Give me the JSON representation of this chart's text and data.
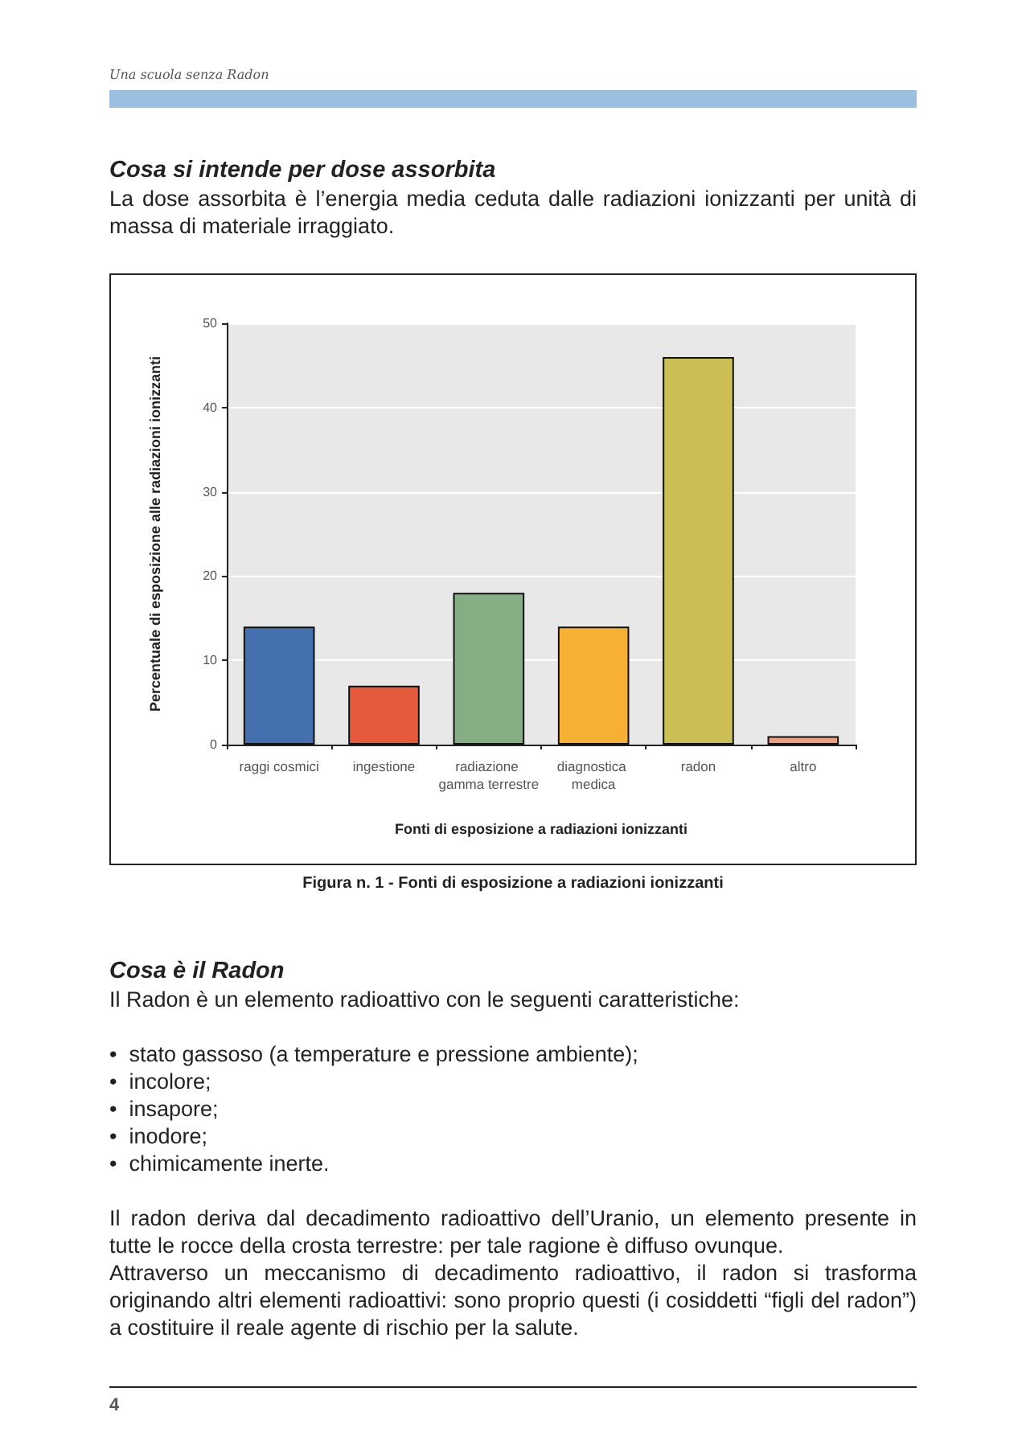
{
  "chart_data": {
    "type": "bar",
    "title": "Figura n. 1 - Fonti di esposizione a radiazioni ionizzanti",
    "xlabel": "Fonti di esposizione a radiazioni ionizzanti",
    "ylabel": "Percentuale di esposizione alle radiazioni ionizzanti",
    "categories": [
      "raggi cosmici",
      "ingestione",
      "radiazione gamma terrestre",
      "diagnostica medica",
      "radon",
      "altro"
    ],
    "values": [
      14,
      7,
      18,
      14,
      46,
      1
    ],
    "colors": [
      "#4470b0",
      "#e55a3a",
      "#86ae84",
      "#f6b034",
      "#cbbe55",
      "#eda07f"
    ],
    "ylim": [
      0,
      50
    ],
    "yticks": [
      0,
      10,
      20,
      30,
      40,
      50
    ],
    "grid": "y",
    "annotations": [
      "Una scuola senza Radon",
      "Cosa si intende per dose assorbita",
      "La dose assorbita è l’energia media ceduta dalle radiazioni ionizzanti per unità di massa di materiale irraggiato.",
      "Cosa è il Radon",
      "Il Radon è un elemento radioattivo con le seguenti caratteristiche:",
      "•  stato gassoso (a temperature e pressione ambiente);",
      "•  incolore;",
      "•  insapore;",
      "•  inodore;",
      "•  chimicamente inerte.",
      "Il radon deriva dal decadimento radioattivo dell’Uranio, un elemento presente in tutte le rocce della crosta terrestre: per tale ragione è diffuso ovunque.",
      "Attraverso un meccanismo di decadimento radioattivo, il radon si trasforma originando altri elementi radioattivi: sono proprio questi (i cosiddetti “figli del radon”) a costituire il reale agente di rischio per la salute.",
      "4"
    ]
  }
}
